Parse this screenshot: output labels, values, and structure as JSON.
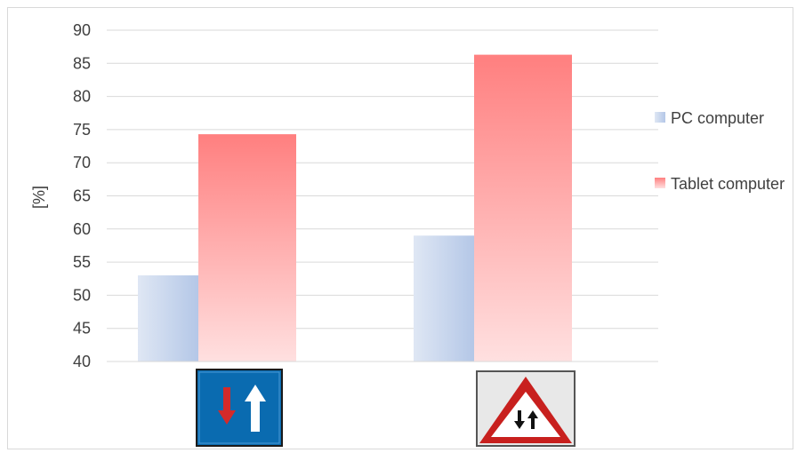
{
  "chart_data": {
    "type": "bar",
    "categories": [
      "two-way-traffic-priority-sign",
      "two-way-traffic-warning-sign"
    ],
    "category_icons": [
      "priority-over-oncoming-traffic-icon",
      "two-way-traffic-ahead-icon"
    ],
    "series": [
      {
        "name": "PC computer",
        "values": [
          53,
          59
        ],
        "color": "#b4c7e7"
      },
      {
        "name": "Tablet computer",
        "values": [
          74.3,
          86.3
        ],
        "color": "#ff8080"
      }
    ],
    "ylabel": "[%]",
    "ylim": [
      40,
      90
    ],
    "yticks": [
      "40",
      "45",
      "50",
      "55",
      "60",
      "65",
      "70",
      "75",
      "80",
      "85",
      "90"
    ],
    "grid": true,
    "legend": "right"
  }
}
